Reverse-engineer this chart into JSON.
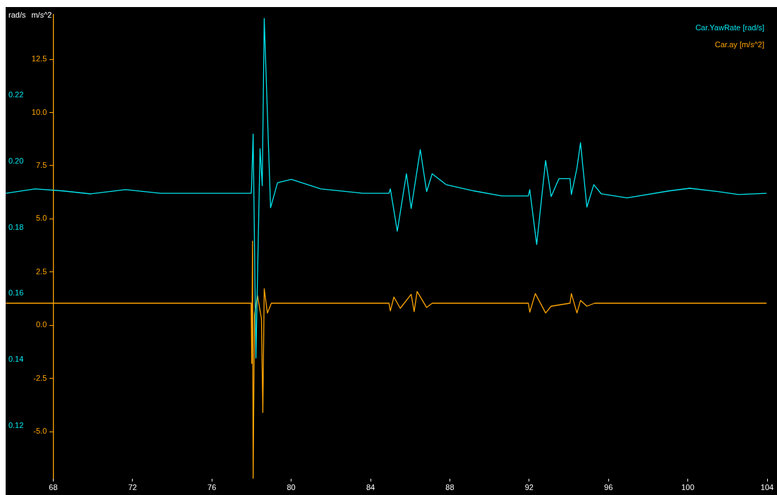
{
  "chart_data": {
    "type": "line",
    "ylabel": "rad/s",
    "y2label": "m/s^2",
    "legend": "top right",
    "marker": "none",
    "xlim": [
      65.6,
      104
    ],
    "xticks": [
      68,
      72,
      76,
      80,
      84,
      88,
      92,
      96,
      100,
      104
    ],
    "ylim": [
      0.104,
      0.2445
    ],
    "yticks": [
      0.12,
      0.14,
      0.16,
      0.18,
      {
        "value": 0.2,
        "label": "0.20"
      },
      0.22
    ],
    "y2lim": [
      -7.2,
      14.6
    ],
    "y2ticks": [
      {
        "value": -5,
        "label": "-5.0"
      },
      {
        "value": -2.5,
        "label": "-2.5"
      },
      {
        "value": 0,
        "label": "0.0"
      },
      {
        "value": 2.5,
        "label": "2.5"
      },
      {
        "value": 5,
        "label": "5.0"
      },
      {
        "value": 7.5,
        "label": "7.5"
      },
      {
        "value": 10,
        "label": "10.0"
      },
      {
        "value": 12.5,
        "label": "12.5"
      }
    ],
    "series": [
      {
        "name": "Car.YawRate [rad/s]",
        "color": "#00e5ee",
        "x": [
          65.61,
          67.09,
          68.49,
          69.9,
          71.65,
          73.41,
          77.98,
          78.0,
          78.08,
          78.22,
          78.43,
          78.54,
          78.64,
          78.96,
          79.31,
          80.01,
          81.49,
          83.6,
          84.93,
          85.0,
          85.35,
          85.81,
          86.05,
          86.51,
          86.83,
          87.11,
          87.81,
          89.22,
          90.62,
          91.96,
          92.03,
          92.38,
          92.83,
          93.11,
          93.5,
          94.06,
          94.13,
          94.41,
          94.59,
          94.91,
          95.26,
          95.64,
          96.94,
          99.05,
          100.1,
          101.51,
          102.56,
          103.97
        ],
        "values": [
          0.1904,
          0.1917,
          0.1911,
          0.1902,
          0.1915,
          0.1904,
          0.1904,
          0.192,
          0.2083,
          0.1405,
          0.2039,
          0.1927,
          0.2433,
          0.186,
          0.1936,
          0.1946,
          0.1917,
          0.1904,
          0.1904,
          0.1917,
          0.1789,
          0.1963,
          0.1858,
          0.2036,
          0.1909,
          0.1963,
          0.193,
          0.1911,
          0.1896,
          0.1896,
          0.1915,
          0.1749,
          0.2003,
          0.1894,
          0.1948,
          0.1948,
          0.19,
          0.198,
          0.2057,
          0.1862,
          0.193,
          0.1902,
          0.189,
          0.1911,
          0.1919,
          0.1909,
          0.19,
          0.1904
        ]
      },
      {
        "name": "Car.ay [m/s^2]",
        "color": "#ffa500",
        "axis": "y2",
        "x": [
          65.61,
          77.98,
          78.01,
          78.05,
          78.08,
          78.15,
          78.3,
          78.5,
          78.57,
          78.64,
          78.8,
          79.0,
          84.93,
          85.0,
          85.18,
          85.5,
          86.05,
          86.2,
          86.35,
          86.83,
          87.11,
          91.96,
          92.03,
          92.31,
          92.83,
          93.11,
          94.06,
          94.13,
          94.41,
          94.59,
          94.91,
          95.3,
          103.97
        ],
        "values": [
          1.04,
          1.04,
          -1.79,
          3.96,
          -7.2,
          0.5,
          1.4,
          0.32,
          -4.09,
          1.72,
          0.58,
          1.04,
          1.04,
          0.68,
          1.33,
          0.8,
          1.46,
          0.65,
          1.59,
          0.84,
          1.04,
          1.04,
          0.62,
          1.49,
          0.58,
          0.9,
          1.04,
          1.49,
          0.58,
          1.17,
          0.9,
          1.04,
          1.04
        ]
      }
    ]
  }
}
